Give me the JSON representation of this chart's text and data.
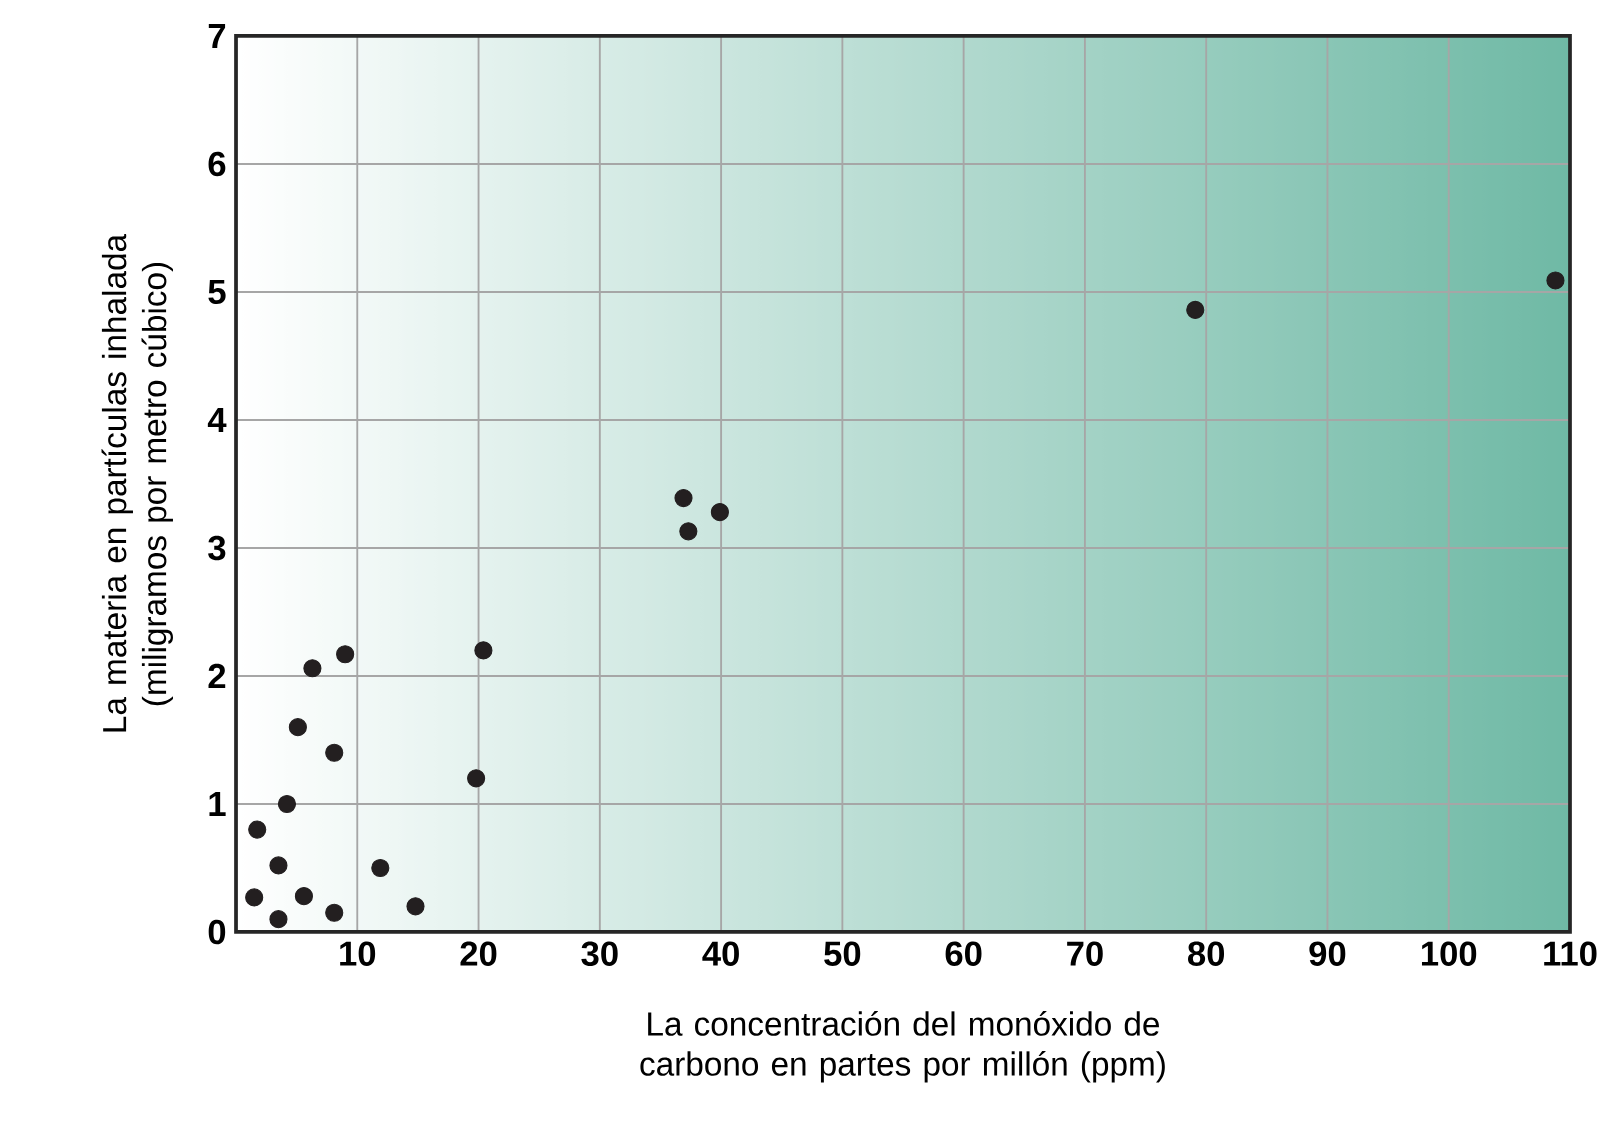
{
  "chart_data": {
    "type": "scatter",
    "xlabel": "La concentración del monóxido de carbono en partes por millón (ppm)",
    "ylabel": "La materia en partículas inhalada (miligramos por metro cúbico)",
    "x": [
      1.5,
      1.75,
      3.5,
      3.5,
      4.2,
      5.1,
      5.6,
      6.3,
      8.1,
      8.1,
      9.0,
      11.9,
      14.8,
      19.8,
      20.4,
      36.9,
      37.3,
      39.9,
      79.1,
      108.8
    ],
    "values": [
      0.27,
      0.8,
      0.52,
      0.1,
      1.0,
      1.6,
      0.28,
      2.06,
      1.4,
      0.15,
      2.17,
      0.5,
      0.2,
      1.2,
      2.2,
      3.39,
      3.13,
      3.28,
      4.86,
      5.09
    ],
    "color": "#231f20",
    "marker": "circle",
    "grid": true,
    "xlim": [
      0,
      110
    ],
    "ylim": [
      0,
      7
    ],
    "xticks": [
      10,
      20,
      30,
      40,
      50,
      60,
      70,
      80,
      90,
      100,
      110
    ],
    "yticks": [
      0,
      1,
      2,
      3,
      4,
      5,
      6,
      7
    ]
  }
}
